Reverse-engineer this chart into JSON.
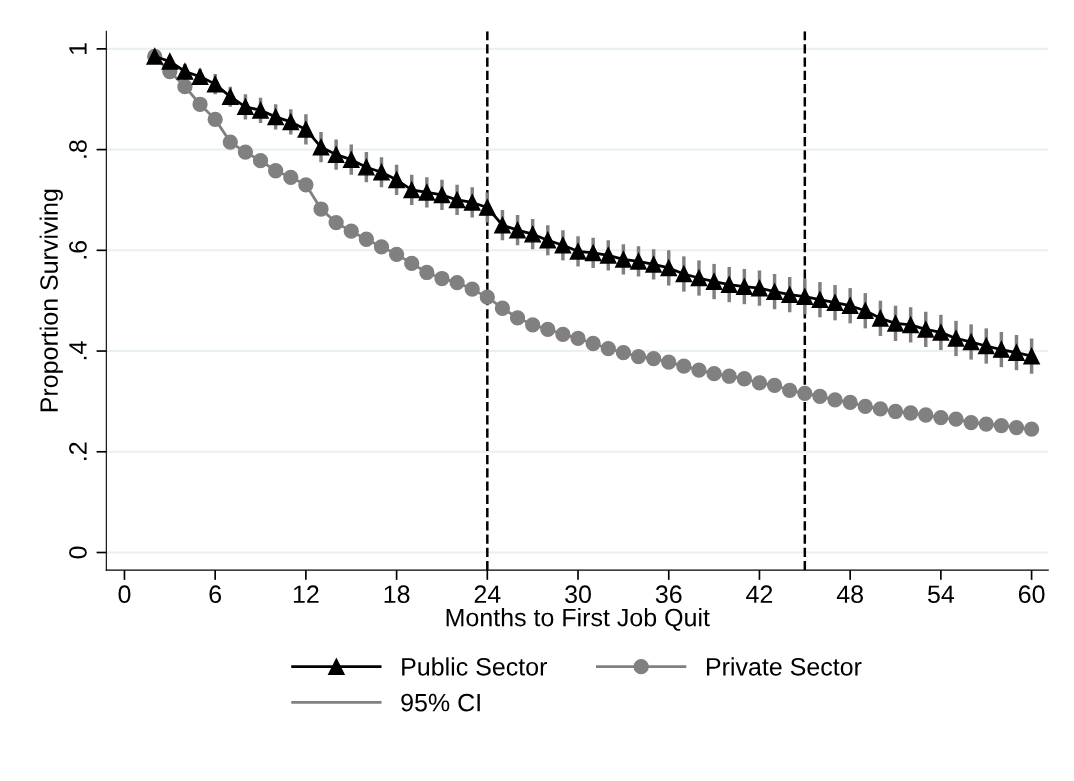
{
  "chart_data": {
    "type": "line",
    "xlabel": "Months to First Job Quit",
    "ylabel": "Proportion Surviving",
    "x": [
      2,
      3,
      4,
      5,
      6,
      7,
      8,
      9,
      10,
      11,
      12,
      13,
      14,
      15,
      16,
      17,
      18,
      19,
      20,
      21,
      22,
      23,
      24,
      25,
      26,
      27,
      28,
      29,
      30,
      31,
      32,
      33,
      34,
      35,
      36,
      37,
      38,
      39,
      40,
      41,
      42,
      43,
      44,
      45,
      46,
      47,
      48,
      49,
      50,
      51,
      52,
      53,
      54,
      55,
      56,
      57,
      58,
      59,
      60
    ],
    "series": [
      {
        "name": "Public Sector",
        "color": "#000000",
        "marker": "triangle",
        "values": [
          0.985,
          0.975,
          0.955,
          0.945,
          0.93,
          0.905,
          0.885,
          0.878,
          0.865,
          0.855,
          0.84,
          0.805,
          0.79,
          0.78,
          0.765,
          0.755,
          0.74,
          0.72,
          0.715,
          0.71,
          0.7,
          0.695,
          0.685,
          0.65,
          0.64,
          0.632,
          0.62,
          0.61,
          0.598,
          0.595,
          0.59,
          0.582,
          0.578,
          0.572,
          0.565,
          0.553,
          0.545,
          0.538,
          0.532,
          0.528,
          0.525,
          0.518,
          0.512,
          0.508,
          0.502,
          0.496,
          0.49,
          0.48,
          0.465,
          0.455,
          0.452,
          0.443,
          0.437,
          0.425,
          0.418,
          0.41,
          0.403,
          0.397,
          0.39
        ],
        "errors": [
          0.01,
          0.01,
          0.015,
          0.015,
          0.02,
          0.02,
          0.025,
          0.025,
          0.025,
          0.025,
          0.03,
          0.03,
          0.03,
          0.03,
          0.03,
          0.03,
          0.03,
          0.03,
          0.03,
          0.03,
          0.03,
          0.03,
          0.03,
          0.03,
          0.03,
          0.03,
          0.03,
          0.03,
          0.03,
          0.03,
          0.03,
          0.03,
          0.03,
          0.03,
          0.035,
          0.035,
          0.035,
          0.035,
          0.035,
          0.035,
          0.035,
          0.035,
          0.035,
          0.035,
          0.035,
          0.035,
          0.035,
          0.035,
          0.035,
          0.035,
          0.035,
          0.035,
          0.035,
          0.035,
          0.035,
          0.035,
          0.035,
          0.035,
          0.035
        ]
      },
      {
        "name": "Private Sector",
        "color": "#808080",
        "marker": "circle",
        "values": [
          0.985,
          0.955,
          0.925,
          0.89,
          0.86,
          0.815,
          0.795,
          0.778,
          0.758,
          0.745,
          0.73,
          0.682,
          0.655,
          0.638,
          0.622,
          0.607,
          0.592,
          0.574,
          0.556,
          0.544,
          0.536,
          0.523,
          0.507,
          0.485,
          0.466,
          0.452,
          0.443,
          0.433,
          0.425,
          0.415,
          0.405,
          0.397,
          0.389,
          0.385,
          0.378,
          0.37,
          0.362,
          0.355,
          0.35,
          0.345,
          0.337,
          0.332,
          0.322,
          0.316,
          0.31,
          0.303,
          0.298,
          0.29,
          0.285,
          0.28,
          0.277,
          0.273,
          0.268,
          0.265,
          0.258,
          0.255,
          0.252,
          0.248,
          0.245
        ],
        "errors": [
          0.005,
          0.008,
          0.01,
          0.01,
          0.01,
          0.012,
          0.012,
          0.012,
          0.012,
          0.012,
          0.012,
          0.012,
          0.012,
          0.012,
          0.012,
          0.012,
          0.012,
          0.012,
          0.012,
          0.012,
          0.012,
          0.012,
          0.012,
          0.012,
          0.012,
          0.012,
          0.012,
          0.012,
          0.012,
          0.012,
          0.012,
          0.012,
          0.012,
          0.012,
          0.012,
          0.012,
          0.012,
          0.012,
          0.012,
          0.012,
          0.012,
          0.012,
          0.012,
          0.012,
          0.012,
          0.012,
          0.012,
          0.012,
          0.012,
          0.012,
          0.012,
          0.012,
          0.012,
          0.012,
          0.012,
          0.012,
          0.012,
          0.012,
          0.012
        ]
      }
    ],
    "annotations": [
      "95% CI"
    ],
    "xlim": [
      -1.2,
      61.1
    ],
    "xticks": [
      0,
      6,
      12,
      18,
      24,
      30,
      36,
      42,
      48,
      54,
      60
    ],
    "ylim": [
      -0.035,
      1.035
    ],
    "yticks": [
      {
        "value": 0,
        "label": "0"
      },
      {
        "value": 0.2,
        "label": ".2"
      },
      {
        "value": 0.4,
        "label": ".4"
      },
      {
        "value": 0.6,
        "label": ".6"
      },
      {
        "value": 0.8,
        "label": ".8"
      },
      {
        "value": 1,
        "label": "1"
      }
    ],
    "ref_lines": [
      {
        "axis": "x",
        "value": 24,
        "color": "#000000",
        "line_style": "dashed"
      },
      {
        "axis": "x",
        "value": 45,
        "color": "#000000",
        "line_style": "dashed"
      }
    ],
    "grid": "y",
    "legend": "bottom"
  }
}
